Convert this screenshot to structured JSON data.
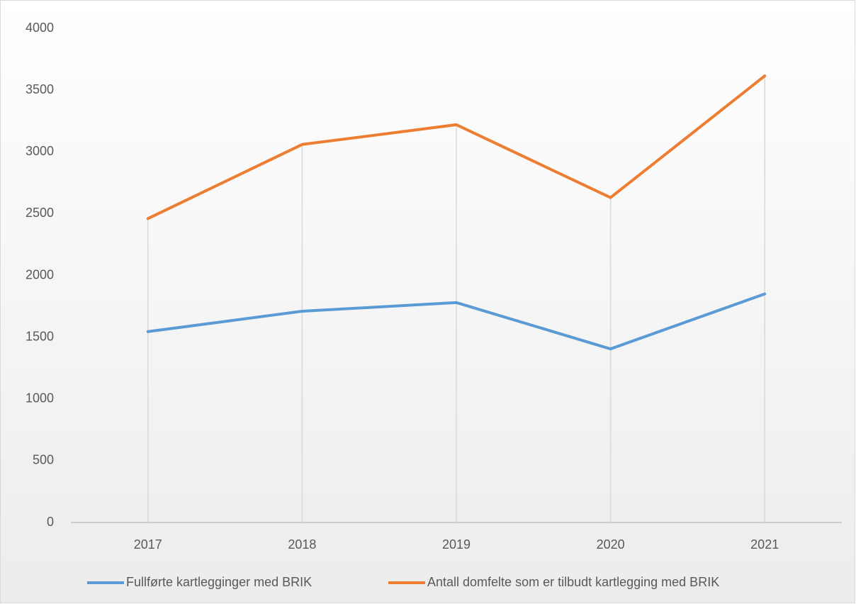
{
  "chart_data": {
    "type": "line",
    "categories": [
      "2017",
      "2018",
      "2019",
      "2020",
      "2021"
    ],
    "series": [
      {
        "name": "Fullførte kartlegginger med BRIK",
        "color": "#5b9bd5",
        "values": [
          1545,
          1710,
          1780,
          1405,
          1850
        ]
      },
      {
        "name": "Antall domfelte som er tilbudt kartlegging med BRIK",
        "color": "#ed7d31",
        "values": [
          2460,
          3060,
          3220,
          2630,
          3615
        ]
      }
    ],
    "ylim": [
      0,
      4000
    ],
    "yticks": [
      0,
      500,
      1000,
      1500,
      2000,
      2500,
      3000,
      3500,
      4000
    ],
    "grid": false,
    "drop_lines": true,
    "legend": "bottom"
  }
}
